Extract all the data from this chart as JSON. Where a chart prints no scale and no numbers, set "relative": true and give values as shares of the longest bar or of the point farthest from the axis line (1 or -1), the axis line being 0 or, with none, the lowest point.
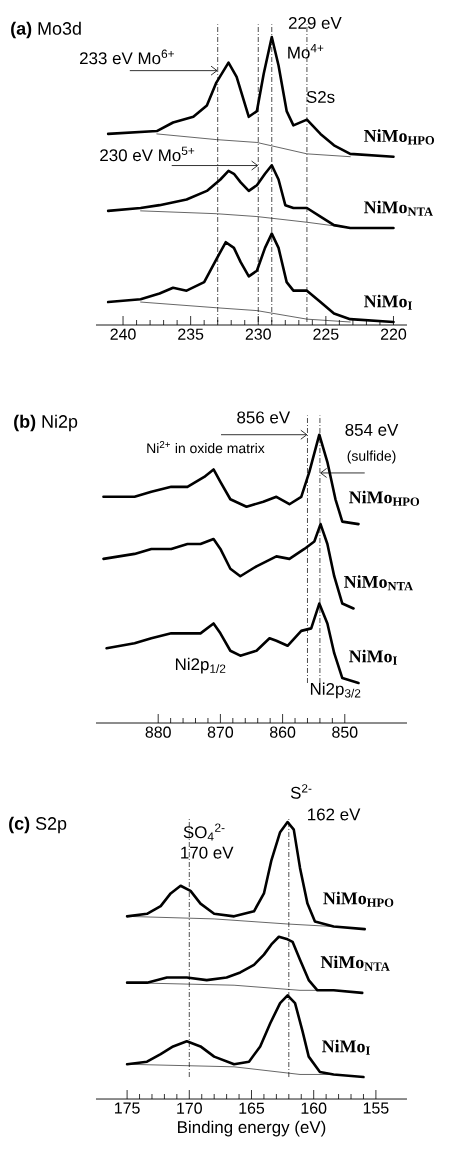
{
  "chart_data": [
    {
      "type": "line",
      "title": "**(a)** Mo3d",
      "relative": true,
      "xlim": [
        242,
        219
      ],
      "xticks": [
        240,
        235,
        230,
        225,
        220
      ],
      "series": [
        {
          "name": "NiMo$_{HPO}$",
          "color": "#000000",
          "x": [
            241.1,
            237.5,
            236.3,
            234.8,
            233.8,
            233.1,
            232.2,
            231.6,
            230.7,
            230.1,
            229.6,
            229.0,
            228.5,
            227.9,
            227.4,
            226.4,
            225.4,
            224.4,
            223.2,
            220.0
          ],
          "values": [
            0.66,
            0.67,
            0.7,
            0.72,
            0.76,
            0.84,
            0.91,
            0.86,
            0.72,
            0.74,
            0.87,
            1.0,
            0.9,
            0.74,
            0.69,
            0.71,
            0.66,
            0.62,
            0.59,
            0.58
          ]
        },
        {
          "name": "NiMo$_{NTA}$",
          "color": "#000000",
          "x": [
            241.1,
            238.7,
            237.3,
            235.3,
            233.8,
            232.8,
            232.2,
            231.8,
            231.3,
            230.7,
            230.1,
            229.5,
            229.0,
            228.5,
            228.0,
            227.4,
            226.4,
            225.4,
            224.4,
            223.2,
            220.0
          ],
          "values": [
            0.39,
            0.4,
            0.41,
            0.43,
            0.46,
            0.5,
            0.53,
            0.52,
            0.49,
            0.46,
            0.48,
            0.52,
            0.55,
            0.5,
            0.41,
            0.4,
            0.4,
            0.37,
            0.34,
            0.33,
            0.33
          ]
        },
        {
          "name": "NiMo$_{I}$",
          "color": "#000000",
          "x": [
            241.1,
            238.7,
            237.3,
            236.3,
            235.3,
            234.0,
            233.1,
            232.4,
            231.8,
            231.3,
            230.7,
            230.1,
            229.5,
            229.0,
            228.5,
            227.9,
            227.4,
            226.4,
            225.4,
            224.4,
            223.2,
            220.0
          ],
          "values": [
            0.07,
            0.08,
            0.1,
            0.12,
            0.11,
            0.14,
            0.22,
            0.28,
            0.26,
            0.21,
            0.16,
            0.18,
            0.26,
            0.31,
            0.26,
            0.14,
            0.11,
            0.11,
            0.07,
            0.03,
            0.01,
            0.0
          ]
        },
        {
          "color": "#000000",
          "x": [
            237.5,
            233.1,
            230.1,
            226.4,
            223.2
          ],
          "values": [
            0.66,
            0.64,
            0.63,
            0.59,
            0.58
          ]
        },
        {
          "color": "#000000",
          "x": [
            238.7,
            233.1,
            230.1,
            226.4,
            223.2
          ],
          "values": [
            0.39,
            0.38,
            0.37,
            0.35,
            0.33
          ]
        },
        {
          "color": "#000000",
          "x": [
            238.7,
            233.1,
            230.1,
            226.4,
            223.2
          ],
          "values": [
            0.07,
            0.05,
            0.04,
            0.01,
            0.0
          ]
        }
      ],
      "ref_lines": [
        {
          "axis": "x",
          "value": 233,
          "line_style": "dashed"
        },
        {
          "axis": "x",
          "value": 230,
          "line_style": "dashed"
        },
        {
          "axis": "x",
          "value": 229,
          "line_style": "dashed"
        },
        {
          "axis": "x",
          "value": 226.4,
          "line_style": "dashed"
        }
      ],
      "annotations": [
        "233 eV Mo$^{6+}$",
        "230 eV Mo$^{5+}$",
        "229 eV",
        "Mo$^{4+}$",
        "S2s"
      ]
    },
    {
      "type": "line",
      "title": "**(b)** Ni2p",
      "relative": true,
      "xlim": [
        890,
        840
      ],
      "xticks": [
        880,
        870,
        860,
        850
      ],
      "series": [
        {
          "name": "NiMo$_{HPO}$",
          "color": "#000000",
          "x": [
            888.8,
            883.8,
            881.1,
            877.9,
            875.3,
            872.6,
            871.1,
            870.0,
            868.4,
            865.8,
            863.1,
            861.0,
            858.9,
            857.0,
            855.7,
            854.1,
            852.8,
            851.5,
            850.4,
            847.8
          ],
          "values": [
            0.75,
            0.75,
            0.77,
            0.79,
            0.79,
            0.83,
            0.86,
            0.81,
            0.74,
            0.71,
            0.73,
            0.75,
            0.72,
            0.75,
            0.85,
            1.0,
            0.89,
            0.74,
            0.65,
            0.64
          ]
        },
        {
          "name": "NiMo$_{NTA}$",
          "color": "#000000",
          "x": [
            888.8,
            883.8,
            881.1,
            877.9,
            875.3,
            873.2,
            871.1,
            870.0,
            868.4,
            866.8,
            864.2,
            861.0,
            858.9,
            856.5,
            854.9,
            853.9,
            852.8,
            851.7,
            850.4,
            848.6
          ],
          "values": [
            0.5,
            0.52,
            0.54,
            0.54,
            0.56,
            0.56,
            0.58,
            0.54,
            0.46,
            0.43,
            0.47,
            0.51,
            0.5,
            0.54,
            0.57,
            0.64,
            0.56,
            0.43,
            0.32,
            0.3
          ]
        },
        {
          "name": "NiMo$_{I}$",
          "color": "#000000",
          "x": [
            888.3,
            883.8,
            881.1,
            877.9,
            875.3,
            873.2,
            871.1,
            870.0,
            868.4,
            866.8,
            864.2,
            862.1,
            861.0,
            859.2,
            857.0,
            855.4,
            854.1,
            852.8,
            851.7,
            850.4,
            847.8
          ],
          "values": [
            0.14,
            0.16,
            0.18,
            0.2,
            0.2,
            0.2,
            0.24,
            0.2,
            0.13,
            0.11,
            0.13,
            0.18,
            0.17,
            0.15,
            0.21,
            0.22,
            0.32,
            0.24,
            0.12,
            0.02,
            0.0
          ]
        }
      ],
      "ref_lines": [
        {
          "axis": "x",
          "value": 856,
          "line_style": "dashed"
        },
        {
          "axis": "x",
          "value": 854,
          "line_style": "dashed"
        }
      ],
      "annotations": [
        "856 eV",
        "Ni$^{2+}$ in oxide matrix",
        "854 eV",
        "(sulfide)",
        "Ni2p$_{1/2}$",
        "Ni2p$_{3/2}$"
      ]
    },
    {
      "type": "line",
      "title": "**(c)**  S2p",
      "xlabel": "Binding energy (eV)",
      "relative": true,
      "xlim": [
        177.5,
        152.5
      ],
      "xticks": [
        175,
        170,
        165,
        160,
        155
      ],
      "series": [
        {
          "name": "NiMo$_{HPO}$",
          "color": "#000000",
          "x": [
            175.0,
            173.4,
            172.3,
            171.5,
            170.7,
            169.9,
            169.1,
            168.0,
            166.4,
            164.8,
            164.0,
            163.4,
            162.7,
            162.1,
            161.6,
            161.1,
            160.5,
            159.9,
            158.4,
            155.9
          ],
          "values": [
            0.63,
            0.64,
            0.67,
            0.72,
            0.75,
            0.73,
            0.68,
            0.64,
            0.63,
            0.65,
            0.72,
            0.85,
            0.96,
            1.0,
            0.97,
            0.82,
            0.68,
            0.61,
            0.59,
            0.58
          ]
        },
        {
          "name": "NiMo$_{NTA}$",
          "color": "#000000",
          "x": [
            175.0,
            173.4,
            171.8,
            170.2,
            168.6,
            167.0,
            165.9,
            164.8,
            164.0,
            163.4,
            162.8,
            162.1,
            161.7,
            161.1,
            160.4,
            159.7,
            158.4,
            156.1
          ],
          "values": [
            0.37,
            0.37,
            0.39,
            0.39,
            0.38,
            0.39,
            0.41,
            0.44,
            0.48,
            0.52,
            0.55,
            0.54,
            0.53,
            0.46,
            0.38,
            0.34,
            0.34,
            0.33
          ]
        },
        {
          "name": "NiMo$_{I}$",
          "color": "#000000",
          "x": [
            175.0,
            173.4,
            172.3,
            171.3,
            170.2,
            169.1,
            168.0,
            166.4,
            165.2,
            164.3,
            163.5,
            162.7,
            162.1,
            161.5,
            160.9,
            160.4,
            159.5,
            158.4,
            156.0
          ],
          "values": [
            0.05,
            0.06,
            0.09,
            0.12,
            0.14,
            0.12,
            0.08,
            0.05,
            0.06,
            0.12,
            0.21,
            0.29,
            0.32,
            0.29,
            0.18,
            0.08,
            0.02,
            0.01,
            0.0
          ]
        },
        {
          "color": "#000000",
          "x": [
            175.0,
            168.0,
            162.1,
            158.4
          ],
          "values": [
            0.63,
            0.62,
            0.6,
            0.59
          ]
        },
        {
          "color": "#000000",
          "x": [
            175.0,
            166.4,
            161.1,
            158.4
          ],
          "values": [
            0.37,
            0.36,
            0.34,
            0.34
          ]
        },
        {
          "color": "#000000",
          "x": [
            175.0,
            166.4,
            161.1,
            158.4
          ],
          "values": [
            0.05,
            0.04,
            0.01,
            0.01
          ]
        }
      ],
      "ref_lines": [
        {
          "axis": "x",
          "value": 170,
          "line_style": "dashed"
        },
        {
          "axis": "x",
          "value": 162,
          "line_style": "dashed"
        }
      ],
      "annotations": [
        "S$^{2-}$",
        "162 eV",
        "SO$_{4}$$^{2-}$",
        "170 eV"
      ]
    }
  ]
}
